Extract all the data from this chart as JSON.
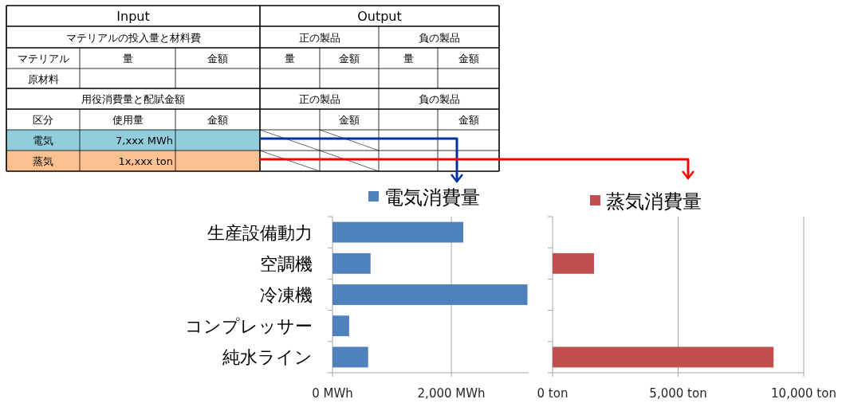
{
  "chart_data": [
    {
      "type": "other",
      "annotations": [
        "Input",
        "Output",
        "マテリアルの投入量と材料費",
        "正の製品",
        "負の製品",
        "マテリアル",
        "量",
        "金額",
        "量",
        "金額",
        "量",
        "金額",
        "原材料",
        "用役消費量と配賦金額",
        "正の製品",
        "負の製品",
        "区分",
        "使用量",
        "金額",
        "金額",
        "金額",
        "電気",
        "7,xxx MWh",
        "蒸気",
        "1x,xxx ton"
      ]
    },
    {
      "type": "bar",
      "orientation": "horizontal",
      "categories": [
        "生産設備動力",
        "空調機",
        "冷凍機",
        "コンプレッサー",
        "純水ライン"
      ],
      "series": [
        {
          "name": "電気消費量",
          "color": "#4f81bd",
          "values": [
            2200,
            640,
            3280,
            280,
            600
          ]
        }
      ],
      "xlim": [
        0,
        3300
      ],
      "xticks": [
        {
          "value": 0,
          "label": "0 MWh"
        },
        {
          "value": 2000,
          "label": "2,000 MWh"
        }
      ],
      "grid": "x",
      "legend": "top"
    },
    {
      "type": "bar",
      "orientation": "horizontal",
      "categories": [
        null,
        null,
        null,
        null,
        null
      ],
      "series": [
        {
          "name": "蒸気消費量",
          "color": "#c0504d",
          "values": [
            null,
            1650,
            null,
            null,
            8800
          ]
        }
      ],
      "xlim": [
        0,
        10000
      ],
      "xticks": [
        {
          "value": 0,
          "label": "0 ton"
        },
        {
          "value": 5000,
          "label": "5,000 ton"
        },
        {
          "value": 10000,
          "label": "10,000 ton"
        }
      ],
      "grid": "x",
      "legend": "top"
    }
  ]
}
